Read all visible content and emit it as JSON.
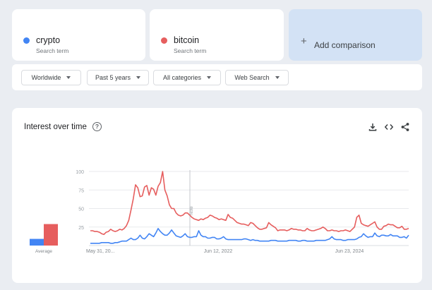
{
  "search_terms": [
    {
      "name": "crypto",
      "sub": "Search term",
      "color": "#4285f4"
    },
    {
      "name": "bitcoin",
      "sub": "Search term",
      "color": "#e65e5e"
    }
  ],
  "add_comparison": {
    "plus": "+",
    "label": "Add comparison"
  },
  "filters": [
    {
      "label": "Worldwide"
    },
    {
      "label": "Past 5 years"
    },
    {
      "label": "All categories"
    },
    {
      "label": "Web Search"
    }
  ],
  "panel": {
    "title": "Interest over time",
    "help": "?",
    "icons": [
      "download-icon",
      "embed-code-icon",
      "share-icon"
    ]
  },
  "chart_data": {
    "type": "line",
    "x_tick_labels": [
      "May 31, 20...",
      "Jun 12, 2022",
      "Jun 23, 2024"
    ],
    "y_ticks": [
      25,
      50,
      75,
      100
    ],
    "ylim": [
      0,
      100
    ],
    "grid": true,
    "annotation": "Note",
    "average": {
      "label": "Average",
      "values": [
        9,
        29
      ]
    },
    "series": [
      {
        "name": "crypto",
        "color": "#4285f4",
        "values": [
          3,
          3,
          3,
          3,
          3,
          4,
          4,
          4,
          4,
          3,
          3,
          4,
          4,
          5,
          6,
          6,
          6,
          8,
          10,
          8,
          8,
          10,
          14,
          10,
          9,
          12,
          16,
          14,
          12,
          17,
          23,
          19,
          16,
          14,
          14,
          17,
          21,
          17,
          13,
          12,
          11,
          13,
          16,
          12,
          11,
          11,
          12,
          12,
          20,
          14,
          12,
          12,
          10,
          10,
          11,
          11,
          9,
          9,
          10,
          12,
          9,
          8,
          8,
          8,
          8,
          8,
          8,
          8,
          9,
          9,
          8,
          7,
          8,
          7,
          7,
          6,
          6,
          6,
          6,
          6,
          7,
          7,
          7,
          6,
          6,
          6,
          6,
          6,
          7,
          7,
          7,
          7,
          6,
          6,
          7,
          7,
          6,
          6,
          6,
          6,
          7,
          7,
          7,
          7,
          7,
          8,
          9,
          12,
          9,
          8,
          8,
          8,
          7,
          7,
          8,
          8,
          8,
          8,
          9,
          11,
          12,
          16,
          13,
          11,
          12,
          12,
          17,
          13,
          12,
          14,
          14,
          13,
          13,
          15,
          13,
          13,
          13,
          11,
          11,
          12,
          10,
          14
        ]
      },
      {
        "name": "bitcoin",
        "color": "#e65e5e",
        "values": [
          20,
          20,
          19,
          19,
          18,
          16,
          15,
          18,
          19,
          22,
          20,
          19,
          20,
          22,
          21,
          23,
          27,
          34,
          48,
          63,
          82,
          78,
          66,
          67,
          79,
          81,
          68,
          78,
          76,
          68,
          80,
          85,
          100,
          75,
          67,
          55,
          50,
          50,
          44,
          41,
          40,
          41,
          44,
          44,
          41,
          38,
          36,
          35,
          34,
          36,
          35,
          37,
          38,
          41,
          40,
          38,
          37,
          35,
          36,
          35,
          34,
          42,
          38,
          37,
          34,
          31,
          30,
          29,
          29,
          28,
          27,
          31,
          30,
          27,
          24,
          22,
          22,
          23,
          24,
          31,
          28,
          26,
          24,
          20,
          21,
          21,
          21,
          20,
          21,
          23,
          22,
          22,
          21,
          21,
          20,
          20,
          23,
          21,
          20,
          20,
          21,
          22,
          23,
          25,
          23,
          20,
          20,
          21,
          20,
          20,
          19,
          20,
          20,
          21,
          20,
          19,
          22,
          25,
          38,
          41,
          30,
          28,
          27,
          26,
          28,
          30,
          32,
          25,
          22,
          22,
          26,
          27,
          29,
          28,
          28,
          26,
          24,
          24,
          26,
          22,
          22,
          23
        ]
      }
    ]
  }
}
